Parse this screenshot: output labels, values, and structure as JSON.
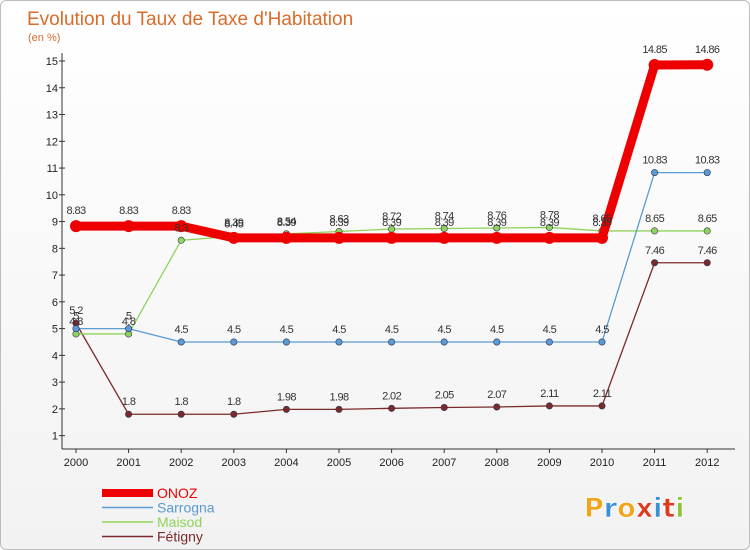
{
  "chart_data": {
    "type": "line",
    "title": "Evolution du Taux de Taxe d'Habitation",
    "subtitle": "(en %)",
    "xlabel": "",
    "ylabel": "",
    "categories": [
      "2000",
      "2001",
      "2002",
      "2003",
      "2004",
      "2005",
      "2006",
      "2007",
      "2008",
      "2009",
      "2010",
      "2011",
      "2012"
    ],
    "ylim": [
      0.5,
      15.3
    ],
    "yticks": [
      "1",
      "2",
      "3",
      "4",
      "5",
      "6",
      "7",
      "8",
      "9",
      "10",
      "11",
      "12",
      "13",
      "14",
      "15"
    ],
    "grid": false,
    "legend_position": "bottom-left",
    "series": [
      {
        "name": "ONOZ",
        "color": "#ee0000",
        "values": [
          8.83,
          8.83,
          8.83,
          8.39,
          8.39,
          8.39,
          8.39,
          8.39,
          8.39,
          8.39,
          8.39,
          14.85,
          14.86
        ],
        "labels": [
          "8.83",
          "8.83",
          "8.83",
          "8.39",
          "8.39",
          "8.39",
          "8.39",
          "8.39",
          "8.39",
          "8.39",
          "8.39",
          "14.85",
          "14.86"
        ]
      },
      {
        "name": "Sarrogna",
        "color": "#5a9bd4",
        "values": [
          5,
          5,
          4.5,
          4.5,
          4.5,
          4.5,
          4.5,
          4.5,
          4.5,
          4.5,
          4.5,
          10.83,
          10.83
        ],
        "labels": [
          "5",
          "5",
          "4.5",
          "4.5",
          "4.5",
          "4.5",
          "4.5",
          "4.5",
          "4.5",
          "4.5",
          "4.5",
          "10.83",
          "10.83"
        ]
      },
      {
        "name": "Maisod",
        "color": "#8fd45a",
        "values": [
          4.8,
          4.8,
          8.3,
          8.45,
          8.54,
          8.63,
          8.72,
          8.74,
          8.76,
          8.78,
          8.65,
          8.65,
          8.65
        ],
        "labels": [
          "4.8",
          "4.8",
          "8.3",
          "8.45",
          "8.54",
          "8.63",
          "8.72",
          "8.74",
          "8.76",
          "8.78",
          "8.65",
          "8.65",
          "8.65"
        ]
      },
      {
        "name": "Fétigny",
        "color": "#7a2a2a",
        "values": [
          5.2,
          1.8,
          1.8,
          1.8,
          1.98,
          1.98,
          2.02,
          2.05,
          2.07,
          2.11,
          2.11,
          7.46,
          7.46
        ],
        "labels": [
          "5.2",
          "1.8",
          "1.8",
          "1.8",
          "1.98",
          "1.98",
          "2.02",
          "2.05",
          "2.07",
          "2.11",
          "2.11",
          "7.46",
          "7.46"
        ]
      }
    ]
  },
  "logo": {
    "letters": [
      "P",
      "r",
      "o",
      "x",
      "i",
      "t",
      "i"
    ],
    "colors": [
      "#f2a51a",
      "#3a8fd6",
      "#f2a51a",
      "#e03a1e",
      "#3a8fd6",
      "#e03a1e",
      "#8fc43a"
    ]
  }
}
